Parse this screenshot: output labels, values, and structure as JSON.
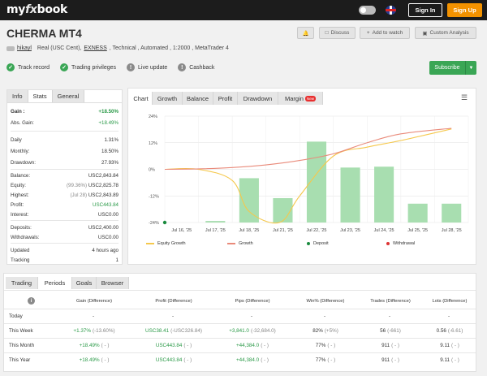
{
  "header": {
    "logo_pre": "my",
    "logo_fx": "fx",
    "logo_post": "book",
    "sign_in": "Sign In",
    "sign_up": "Sign Up"
  },
  "account": {
    "title": "CHERMA MT4",
    "actions": {
      "discuss": "Discuss",
      "add_watch": "Add to watch",
      "custom": "Custom Analysis"
    },
    "user": "hikayl",
    "type_prefix": "Real (USC Cent),",
    "broker": "EXNESS",
    "type_suffix": ", Technical , Automated , 1:2000 , MetaTrader 4",
    "badges": [
      "Track record",
      "Trading privileges",
      "Live update",
      "Cashback"
    ],
    "subscribe": "Subscribe"
  },
  "colors": {
    "green": "#3aa655",
    "orange": "#f39200",
    "bar": "#a8deb0",
    "growth_line": "#e98a7a",
    "equity_line": "#f5c84c"
  },
  "stats": {
    "tabs": [
      "Info",
      "Stats",
      "General"
    ],
    "gain_label": "Gain :",
    "gain_value": "+18.50%",
    "abs_label": "Abs. Gain:",
    "abs_value": "+18.49%",
    "daily_label": "Daily",
    "daily_value": "1.31%",
    "monthly_label": "Monthly:",
    "monthly_value": "18.50%",
    "drawdown_label": "Drawdown:",
    "drawdown_value": "27.93%",
    "balance_label": "Balance:",
    "balance_value": "USC2,843.84",
    "equity_label": "Equity:",
    "equity_note": "(99.36%)",
    "equity_value": "USC2,825.78",
    "highest_label": "Highest:",
    "highest_note": "(Jul 28)",
    "highest_value": "USC2,843.89",
    "profit_label": "Profit:",
    "profit_value": "USC443.84",
    "interest_label": "Interest:",
    "interest_value": "USC0.00",
    "deposits_label": "Deposits:",
    "deposits_value": "USC2,400.00",
    "withdrawals_label": "Withdrawals:",
    "withdrawals_value": "USC0.00",
    "updated_label": "Updated",
    "updated_value": "4 hours ago",
    "tracking_label": "Tracking",
    "tracking_value": "1"
  },
  "chart_tabs": [
    "Chart",
    "Growth",
    "Balance",
    "Profit",
    "Drawdown",
    "Margin"
  ],
  "chart_new_badge": "New",
  "chart_data": {
    "type": "bar",
    "categories": [
      "Jul 16, '25",
      "Jul 17, '25",
      "Jul 18, '25",
      "Jul 21, '25",
      "Jul 22, '25",
      "Jul 23, '25",
      "Jul 24, '25",
      "Jul 25, '25",
      "Jul 28, '25"
    ],
    "ylim": [
      -24,
      24
    ],
    "yticks": [
      "24%",
      "12%",
      "0%",
      "-12%",
      "-24%"
    ],
    "bar_x": [
      0.5,
      1.5,
      2.5,
      3.5,
      4.5,
      5.5,
      6.5,
      7.5,
      8.5
    ],
    "bars": [
      0,
      -23.3,
      -4,
      -13,
      12.5,
      0.8,
      1.2,
      -15.5,
      -15.5
    ],
    "growth": {
      "x": [
        0,
        1,
        2,
        3,
        4,
        5,
        6,
        7,
        8.5
      ],
      "y": [
        0,
        0.2,
        0.8,
        2,
        4,
        7,
        12,
        16,
        18.5
      ]
    },
    "equity": {
      "x": [
        0,
        1,
        2,
        2.5,
        3.4,
        4,
        5,
        6,
        7,
        8.5
      ],
      "y": [
        0,
        0,
        -5,
        -19,
        -24,
        -12,
        6,
        10,
        13,
        18.2
      ]
    },
    "deposit_point": {
      "x": 0,
      "y": -24
    },
    "legend": [
      "Equity Growth",
      "Growth",
      "Deposit",
      "Withdrawal"
    ]
  },
  "periods": {
    "tabs": [
      "Trading",
      "Periods",
      "Goals",
      "Browser"
    ],
    "columns": [
      "Gain (Difference)",
      "Profit (Difference)",
      "Pips (Difference)",
      "Win% (Difference)",
      "Trades (Difference)",
      "Lots (Difference)"
    ],
    "rows": [
      {
        "label": "Today",
        "gain": "-",
        "gain_d": "",
        "profit": "-",
        "profit_d": "",
        "pips": "-",
        "pips_d": "",
        "win": "-",
        "win_d": "",
        "trades": "-",
        "trades_d": "",
        "lots": "-",
        "lots_d": ""
      },
      {
        "label": "This Week",
        "gain": "+1.37%",
        "gain_d": "(-13.60%)",
        "profit": "USC38.41",
        "profit_d": "(-USC326.84)",
        "pips": "+3,841.0",
        "pips_d": "(-32,684.0)",
        "win": "82%",
        "win_d": "(+5%)",
        "trades": "56",
        "trades_d": "(-661)",
        "lots": "0.56",
        "lots_d": "(-6.61)"
      },
      {
        "label": "This Month",
        "gain": "+18.49%",
        "gain_d": "( - )",
        "profit": "USC443.84",
        "profit_d": "( - )",
        "pips": "+44,384.0",
        "pips_d": "( - )",
        "win": "77%",
        "win_d": "( - )",
        "trades": "911",
        "trades_d": "( - )",
        "lots": "9.11",
        "lots_d": "( - )"
      },
      {
        "label": "This Year",
        "gain": "+18.49%",
        "gain_d": "( - )",
        "profit": "USC443.84",
        "profit_d": "( - )",
        "pips": "+44,384.0",
        "pips_d": "( - )",
        "win": "77%",
        "win_d": "( - )",
        "trades": "911",
        "trades_d": "( - )",
        "lots": "9.11",
        "lots_d": "( - )"
      }
    ]
  }
}
